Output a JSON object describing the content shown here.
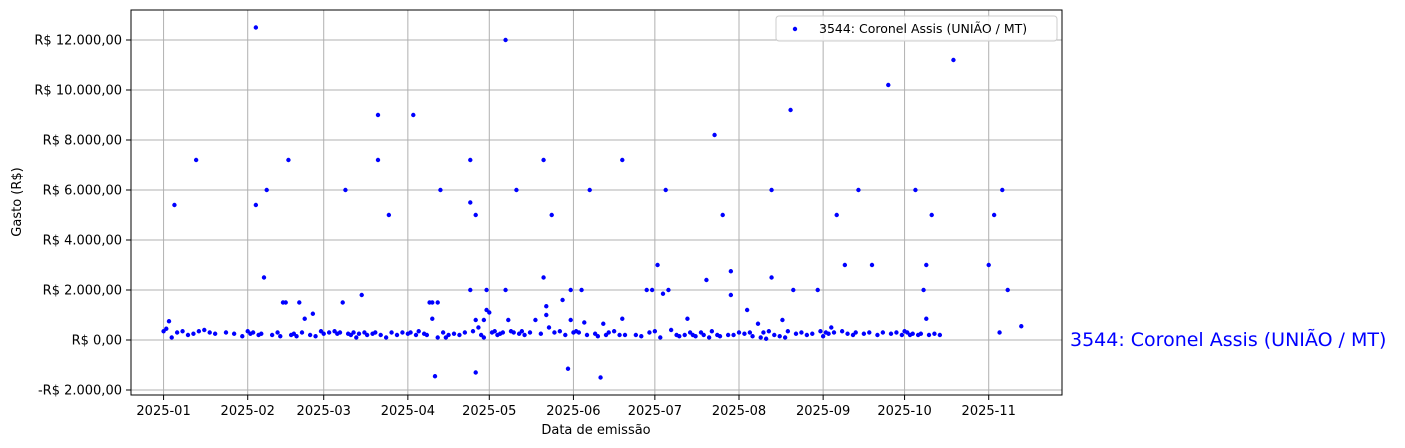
{
  "chart_data": {
    "type": "scatter",
    "xlabel": "Data de emissão",
    "ylabel": "Gasto (R$)",
    "xlim": [
      "2024-12-20",
      "2025-11-28"
    ],
    "ylim": [
      -2200,
      13200
    ],
    "x_ticks": [
      "2025-01-01",
      "2025-02-01",
      "2025-03-01",
      "2025-04-01",
      "2025-05-01",
      "2025-06-01",
      "2025-07-01",
      "2025-08-01",
      "2025-09-01",
      "2025-10-01",
      "2025-11-01"
    ],
    "x_tick_labels": [
      "2025-01",
      "2025-02",
      "2025-03",
      "2025-04",
      "2025-05",
      "2025-06",
      "2025-07",
      "2025-08",
      "2025-09",
      "2025-10",
      "2025-11"
    ],
    "y_ticks": [
      -2000,
      0,
      2000,
      4000,
      6000,
      8000,
      10000,
      12000
    ],
    "y_tick_labels": [
      "-R$ 2.000,00",
      "R$ 0,00",
      "R$ 2.000,00",
      "R$ 4.000,00",
      "R$ 6.000,00",
      "R$ 8.000,00",
      "R$ 10.000,00",
      "R$ 12.000,00"
    ],
    "grid": true,
    "legend_position": "top-right",
    "annotation": "3544: Coronel Assis (UNIÃO / MT)",
    "series": [
      {
        "name": "3544: Coronel Assis (UNIÃO / MT)",
        "color": "#0000ff",
        "points": [
          [
            "2025-01-01",
            350
          ],
          [
            "2025-01-02",
            450
          ],
          [
            "2025-01-03",
            750
          ],
          [
            "2025-01-04",
            100
          ],
          [
            "2025-01-05",
            5400
          ],
          [
            "2025-01-06",
            300
          ],
          [
            "2025-01-08",
            350
          ],
          [
            "2025-01-10",
            200
          ],
          [
            "2025-01-12",
            250
          ],
          [
            "2025-01-13",
            7200
          ],
          [
            "2025-01-14",
            350
          ],
          [
            "2025-01-16",
            400
          ],
          [
            "2025-01-18",
            300
          ],
          [
            "2025-01-20",
            250
          ],
          [
            "2025-01-24",
            300
          ],
          [
            "2025-01-27",
            250
          ],
          [
            "2025-01-30",
            150
          ],
          [
            "2025-02-01",
            350
          ],
          [
            "2025-02-02",
            250
          ],
          [
            "2025-02-03",
            300
          ],
          [
            "2025-02-04",
            12500
          ],
          [
            "2025-02-04",
            5400
          ],
          [
            "2025-02-05",
            200
          ],
          [
            "2025-02-06",
            250
          ],
          [
            "2025-02-07",
            2500
          ],
          [
            "2025-02-08",
            6000
          ],
          [
            "2025-02-10",
            200
          ],
          [
            "2025-02-12",
            300
          ],
          [
            "2025-02-13",
            150
          ],
          [
            "2025-02-14",
            1500
          ],
          [
            "2025-02-15",
            1500
          ],
          [
            "2025-02-16",
            7200
          ],
          [
            "2025-02-17",
            200
          ],
          [
            "2025-02-18",
            250
          ],
          [
            "2025-02-19",
            150
          ],
          [
            "2025-02-20",
            1500
          ],
          [
            "2025-02-21",
            300
          ],
          [
            "2025-02-22",
            850
          ],
          [
            "2025-02-24",
            200
          ],
          [
            "2025-02-25",
            1050
          ],
          [
            "2025-02-26",
            150
          ],
          [
            "2025-02-28",
            350
          ],
          [
            "2025-03-01",
            250
          ],
          [
            "2025-03-03",
            300
          ],
          [
            "2025-03-05",
            350
          ],
          [
            "2025-03-06",
            250
          ],
          [
            "2025-03-07",
            300
          ],
          [
            "2025-03-08",
            1500
          ],
          [
            "2025-03-09",
            6000
          ],
          [
            "2025-03-10",
            250
          ],
          [
            "2025-03-11",
            200
          ],
          [
            "2025-03-12",
            300
          ],
          [
            "2025-03-13",
            100
          ],
          [
            "2025-03-14",
            250
          ],
          [
            "2025-03-15",
            1800
          ],
          [
            "2025-03-16",
            300
          ],
          [
            "2025-03-17",
            200
          ],
          [
            "2025-03-19",
            250
          ],
          [
            "2025-03-20",
            300
          ],
          [
            "2025-03-21",
            9000
          ],
          [
            "2025-03-21",
            7200
          ],
          [
            "2025-03-22",
            200
          ],
          [
            "2025-03-24",
            100
          ],
          [
            "2025-03-25",
            5000
          ],
          [
            "2025-03-26",
            300
          ],
          [
            "2025-03-28",
            200
          ],
          [
            "2025-03-30",
            300
          ],
          [
            "2025-04-01",
            250
          ],
          [
            "2025-04-02",
            300
          ],
          [
            "2025-04-03",
            9000
          ],
          [
            "2025-04-04",
            200
          ],
          [
            "2025-04-05",
            350
          ],
          [
            "2025-04-07",
            250
          ],
          [
            "2025-04-08",
            200
          ],
          [
            "2025-04-09",
            1500
          ],
          [
            "2025-04-10",
            1500
          ],
          [
            "2025-04-10",
            850
          ],
          [
            "2025-04-11",
            -1450
          ],
          [
            "2025-04-12",
            100
          ],
          [
            "2025-04-12",
            1500
          ],
          [
            "2025-04-13",
            6000
          ],
          [
            "2025-04-14",
            300
          ],
          [
            "2025-04-15",
            100
          ],
          [
            "2025-04-16",
            200
          ],
          [
            "2025-04-18",
            250
          ],
          [
            "2025-04-20",
            200
          ],
          [
            "2025-04-22",
            300
          ],
          [
            "2025-04-24",
            7200
          ],
          [
            "2025-04-24",
            5500
          ],
          [
            "2025-04-24",
            2000
          ],
          [
            "2025-04-25",
            350
          ],
          [
            "2025-04-26",
            -1300
          ],
          [
            "2025-04-26",
            5000
          ],
          [
            "2025-04-26",
            800
          ],
          [
            "2025-04-27",
            500
          ],
          [
            "2025-04-28",
            200
          ],
          [
            "2025-04-29",
            100
          ],
          [
            "2025-04-29",
            800
          ],
          [
            "2025-04-30",
            2000
          ],
          [
            "2025-04-30",
            1200
          ],
          [
            "2025-05-01",
            1100
          ],
          [
            "2025-05-02",
            300
          ],
          [
            "2025-05-03",
            350
          ],
          [
            "2025-05-04",
            200
          ],
          [
            "2025-05-05",
            250
          ],
          [
            "2025-05-06",
            300
          ],
          [
            "2025-05-07",
            12000
          ],
          [
            "2025-05-07",
            2000
          ],
          [
            "2025-05-08",
            800
          ],
          [
            "2025-05-09",
            350
          ],
          [
            "2025-05-10",
            300
          ],
          [
            "2025-05-11",
            6000
          ],
          [
            "2025-05-12",
            250
          ],
          [
            "2025-05-13",
            350
          ],
          [
            "2025-05-14",
            200
          ],
          [
            "2025-05-16",
            300
          ],
          [
            "2025-05-18",
            800
          ],
          [
            "2025-05-20",
            250
          ],
          [
            "2025-05-21",
            7200
          ],
          [
            "2025-05-21",
            2500
          ],
          [
            "2025-05-22",
            1000
          ],
          [
            "2025-05-22",
            1350
          ],
          [
            "2025-05-23",
            500
          ],
          [
            "2025-05-24",
            5000
          ],
          [
            "2025-05-25",
            300
          ],
          [
            "2025-05-27",
            350
          ],
          [
            "2025-05-28",
            1600
          ],
          [
            "2025-05-29",
            200
          ],
          [
            "2025-05-30",
            -1150
          ],
          [
            "2025-05-31",
            2000
          ],
          [
            "2025-05-31",
            800
          ],
          [
            "2025-06-01",
            300
          ],
          [
            "2025-06-02",
            350
          ],
          [
            "2025-06-03",
            300
          ],
          [
            "2025-06-04",
            2000
          ],
          [
            "2025-06-05",
            700
          ],
          [
            "2025-06-06",
            200
          ],
          [
            "2025-06-07",
            6000
          ],
          [
            "2025-06-09",
            250
          ],
          [
            "2025-06-10",
            150
          ],
          [
            "2025-06-11",
            -1500
          ],
          [
            "2025-06-12",
            650
          ],
          [
            "2025-06-13",
            200
          ],
          [
            "2025-06-14",
            300
          ],
          [
            "2025-06-16",
            350
          ],
          [
            "2025-06-18",
            200
          ],
          [
            "2025-06-19",
            7200
          ],
          [
            "2025-06-19",
            850
          ],
          [
            "2025-06-20",
            200
          ],
          [
            "2025-06-24",
            200
          ],
          [
            "2025-06-26",
            150
          ],
          [
            "2025-06-28",
            2000
          ],
          [
            "2025-06-29",
            300
          ],
          [
            "2025-06-30",
            2000
          ],
          [
            "2025-07-01",
            350
          ],
          [
            "2025-07-02",
            3000
          ],
          [
            "2025-07-03",
            100
          ],
          [
            "2025-07-04",
            1850
          ],
          [
            "2025-07-05",
            6000
          ],
          [
            "2025-07-06",
            2000
          ],
          [
            "2025-07-07",
            400
          ],
          [
            "2025-07-09",
            200
          ],
          [
            "2025-07-10",
            150
          ],
          [
            "2025-07-12",
            200
          ],
          [
            "2025-07-13",
            850
          ],
          [
            "2025-07-14",
            300
          ],
          [
            "2025-07-15",
            200
          ],
          [
            "2025-07-16",
            150
          ],
          [
            "2025-07-18",
            300
          ],
          [
            "2025-07-19",
            200
          ],
          [
            "2025-07-20",
            2400
          ],
          [
            "2025-07-21",
            100
          ],
          [
            "2025-07-22",
            350
          ],
          [
            "2025-07-23",
            8200
          ],
          [
            "2025-07-24",
            200
          ],
          [
            "2025-07-25",
            150
          ],
          [
            "2025-07-26",
            5000
          ],
          [
            "2025-07-28",
            200
          ],
          [
            "2025-07-29",
            2750
          ],
          [
            "2025-07-29",
            1800
          ],
          [
            "2025-07-30",
            200
          ],
          [
            "2025-08-01",
            300
          ],
          [
            "2025-08-03",
            250
          ],
          [
            "2025-08-04",
            1200
          ],
          [
            "2025-08-05",
            300
          ],
          [
            "2025-08-06",
            150
          ],
          [
            "2025-08-08",
            650
          ],
          [
            "2025-08-09",
            100
          ],
          [
            "2025-08-10",
            300
          ],
          [
            "2025-08-11",
            50
          ],
          [
            "2025-08-12",
            350
          ],
          [
            "2025-08-13",
            2500
          ],
          [
            "2025-08-13",
            6000
          ],
          [
            "2025-08-14",
            200
          ],
          [
            "2025-08-16",
            150
          ],
          [
            "2025-08-17",
            800
          ],
          [
            "2025-08-18",
            100
          ],
          [
            "2025-08-19",
            350
          ],
          [
            "2025-08-20",
            9200
          ],
          [
            "2025-08-21",
            2000
          ],
          [
            "2025-08-22",
            250
          ],
          [
            "2025-08-24",
            300
          ],
          [
            "2025-08-26",
            200
          ],
          [
            "2025-08-28",
            250
          ],
          [
            "2025-08-30",
            2000
          ],
          [
            "2025-08-31",
            350
          ],
          [
            "2025-09-01",
            150
          ],
          [
            "2025-09-02",
            300
          ],
          [
            "2025-09-03",
            250
          ],
          [
            "2025-09-04",
            500
          ],
          [
            "2025-09-05",
            300
          ],
          [
            "2025-09-06",
            5000
          ],
          [
            "2025-09-08",
            350
          ],
          [
            "2025-09-09",
            3000
          ],
          [
            "2025-09-10",
            250
          ],
          [
            "2025-09-12",
            200
          ],
          [
            "2025-09-13",
            300
          ],
          [
            "2025-09-14",
            6000
          ],
          [
            "2025-09-16",
            250
          ],
          [
            "2025-09-18",
            300
          ],
          [
            "2025-09-19",
            3000
          ],
          [
            "2025-09-21",
            200
          ],
          [
            "2025-09-23",
            300
          ],
          [
            "2025-09-25",
            10200
          ],
          [
            "2025-09-26",
            250
          ],
          [
            "2025-09-28",
            300
          ],
          [
            "2025-09-30",
            200
          ],
          [
            "2025-10-01",
            350
          ],
          [
            "2025-10-02",
            300
          ],
          [
            "2025-10-03",
            200
          ],
          [
            "2025-10-04",
            250
          ],
          [
            "2025-10-05",
            6000
          ],
          [
            "2025-10-06",
            200
          ],
          [
            "2025-10-07",
            250
          ],
          [
            "2025-10-08",
            2000
          ],
          [
            "2025-10-09",
            3000
          ],
          [
            "2025-10-09",
            850
          ],
          [
            "2025-10-10",
            200
          ],
          [
            "2025-10-11",
            5000
          ],
          [
            "2025-10-12",
            250
          ],
          [
            "2025-10-14",
            200
          ],
          [
            "2025-10-19",
            11200
          ],
          [
            "2025-11-01",
            3000
          ],
          [
            "2025-11-03",
            5000
          ],
          [
            "2025-11-05",
            300
          ],
          [
            "2025-11-06",
            6000
          ],
          [
            "2025-11-08",
            2000
          ],
          [
            "2025-11-13",
            550
          ]
        ]
      }
    ]
  }
}
